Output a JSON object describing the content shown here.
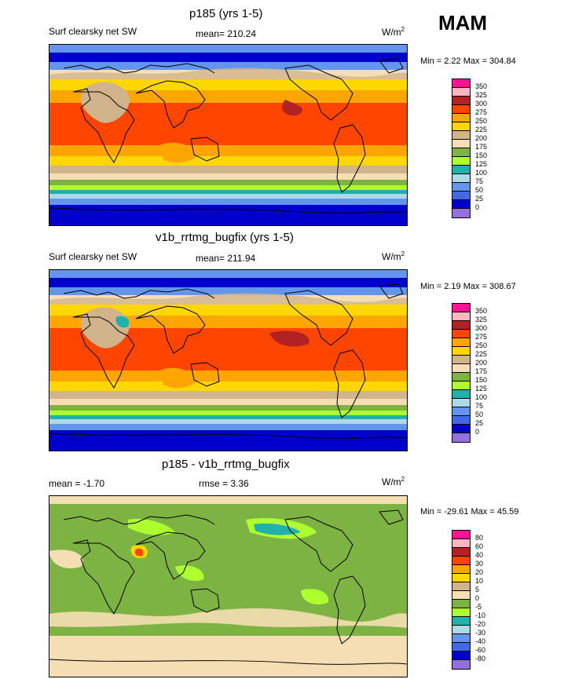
{
  "season": "MAM",
  "panels": [
    {
      "title": "p185 (yrs 1-5)",
      "left_label": "Surf clearsky net SW",
      "center_label": "mean= 210.24",
      "units_base": "W/m",
      "units_sup": "2",
      "minmax": "Min =   2.22 Max = 304.84",
      "colorbar": {
        "labels": [
          "350",
          "325",
          "300",
          "275",
          "250",
          "225",
          "200",
          "175",
          "150",
          "125",
          "100",
          "75",
          "50",
          "25",
          "0"
        ],
        "colors": [
          "#ff1493",
          "#ffb6c1",
          "#b22222",
          "#ff4500",
          "#ffa500",
          "#ffd700",
          "#d2b48c",
          "#f5deb3",
          "#7cb342",
          "#adff2f",
          "#20b2aa",
          "#add8e6",
          "#6495ed",
          "#4169e1",
          "#0000cd",
          "#9370db"
        ]
      }
    },
    {
      "title": "v1b_rrtmg_bugfix (yrs 1-5)",
      "left_label": "Surf clearsky net SW",
      "center_label": "mean= 211.94",
      "units_base": "W/m",
      "units_sup": "2",
      "minmax": "Min =   2.19 Max = 308.67",
      "colorbar": {
        "labels": [
          "350",
          "325",
          "300",
          "275",
          "250",
          "225",
          "200",
          "175",
          "150",
          "125",
          "100",
          "75",
          "50",
          "25",
          "0"
        ],
        "colors": [
          "#ff1493",
          "#ffb6c1",
          "#b22222",
          "#ff4500",
          "#ffa500",
          "#ffd700",
          "#d2b48c",
          "#f5deb3",
          "#7cb342",
          "#adff2f",
          "#20b2aa",
          "#add8e6",
          "#6495ed",
          "#4169e1",
          "#0000cd",
          "#9370db"
        ]
      }
    },
    {
      "title": "p185 - v1b_rrtmg_bugfix",
      "left_label": "mean =  -1.70",
      "center_label": "rmse =   3.36",
      "units_base": "W/m",
      "units_sup": "2",
      "minmax": "Min = -29.61 Max =  45.59",
      "colorbar": {
        "labels": [
          "80",
          "60",
          "40",
          "30",
          "20",
          "10",
          "5",
          "0",
          "-5",
          "-10",
          "-20",
          "-30",
          "-40",
          "-60",
          "-80"
        ],
        "colors": [
          "#ff1493",
          "#ffb6c1",
          "#b22222",
          "#ff4500",
          "#ffa500",
          "#ffd700",
          "#d2b48c",
          "#f5deb3",
          "#7cb342",
          "#adff2f",
          "#20b2aa",
          "#add8e6",
          "#6495ed",
          "#4169e1",
          "#0000cd",
          "#9370db"
        ]
      }
    }
  ],
  "chart_data": [
    {
      "type": "heatmap",
      "title": "p185 (yrs 1-5)",
      "variable": "Surf clearsky net SW",
      "units": "W/m2",
      "mean": 210.24,
      "min": 2.22,
      "max": 304.84,
      "contour_levels": [
        0,
        25,
        50,
        75,
        100,
        125,
        150,
        175,
        200,
        225,
        250,
        275,
        300,
        325,
        350
      ]
    },
    {
      "type": "heatmap",
      "title": "v1b_rrtmg_bugfix (yrs 1-5)",
      "variable": "Surf clearsky net SW",
      "units": "W/m2",
      "mean": 211.94,
      "min": 2.19,
      "max": 308.67,
      "contour_levels": [
        0,
        25,
        50,
        75,
        100,
        125,
        150,
        175,
        200,
        225,
        250,
        275,
        300,
        325,
        350
      ]
    },
    {
      "type": "heatmap",
      "title": "p185 - v1b_rrtmg_bugfix",
      "units": "W/m2",
      "mean": -1.7,
      "rmse": 3.36,
      "min": -29.61,
      "max": 45.59,
      "contour_levels": [
        -80,
        -60,
        -40,
        -30,
        -20,
        -10,
        -5,
        0,
        5,
        10,
        20,
        30,
        40,
        60,
        80
      ]
    }
  ]
}
